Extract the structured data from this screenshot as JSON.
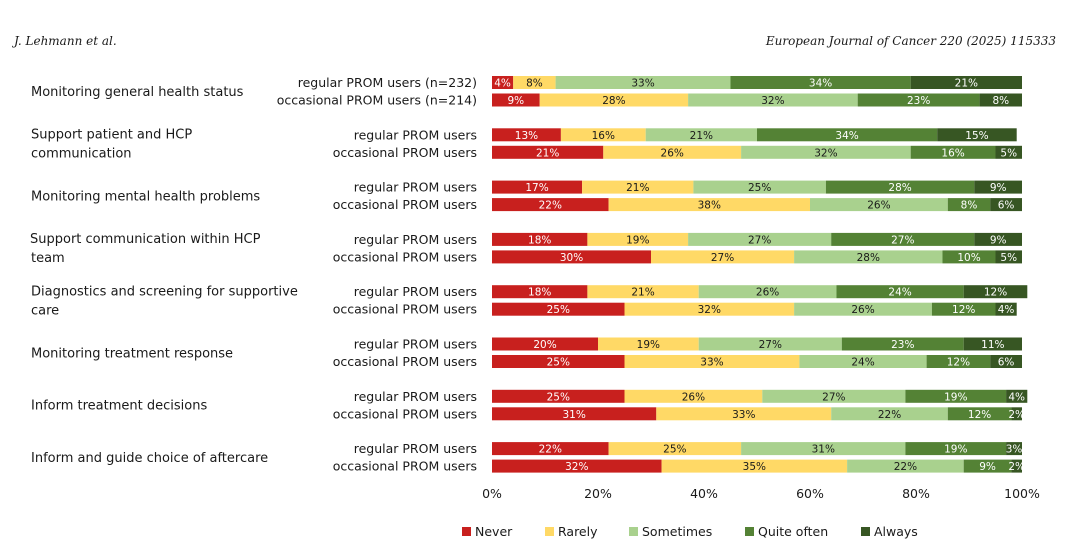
{
  "header": {
    "authors": "J. Lehmann et al.",
    "journal": "European Journal of Cancer 220 (2025) 115333"
  },
  "chart_data": {
    "type": "bar",
    "orientation": "horizontal",
    "stacked": true,
    "percent_stacked": true,
    "xlim": [
      0,
      100
    ],
    "x_ticks": [
      "0%",
      "20%",
      "40%",
      "60%",
      "80%",
      "100%"
    ],
    "grid": false,
    "legend_position": "bottom",
    "colors": {
      "Never": "#c8201e",
      "Rarely": "#ffd966",
      "Sometimes": "#a9d18e",
      "Quite often": "#548235",
      "Always": "#375623"
    },
    "series_names": [
      "Never",
      "Rarely",
      "Sometimes",
      "Quite often",
      "Always"
    ],
    "categories": [
      {
        "label_lines": [
          "Monitoring general health status"
        ],
        "groups": [
          {
            "label": "regular PROM users (n=232)",
            "values": [
              4,
              8,
              33,
              34,
              21
            ]
          },
          {
            "label": "occasional PROM users (n=214)",
            "values": [
              9,
              28,
              32,
              23,
              8
            ]
          }
        ]
      },
      {
        "label_lines": [
          "Support patient and HCP",
          "communication"
        ],
        "groups": [
          {
            "label": "regular PROM users",
            "values": [
              13,
              16,
              21,
              34,
              15
            ]
          },
          {
            "label": "occasional PROM users",
            "values": [
              21,
              26,
              32,
              16,
              5
            ]
          }
        ]
      },
      {
        "label_lines": [
          "Monitoring mental health problems"
        ],
        "groups": [
          {
            "label": "regular PROM users",
            "values": [
              17,
              21,
              25,
              28,
              9
            ]
          },
          {
            "label": "occasional PROM users",
            "values": [
              22,
              38,
              26,
              8,
              6
            ]
          }
        ]
      },
      {
        "label_lines": [
          "Support communication within HCP",
          "team"
        ],
        "groups": [
          {
            "label": "regular PROM users",
            "values": [
              18,
              19,
              27,
              27,
              9
            ]
          },
          {
            "label": "occasional PROM users",
            "values": [
              30,
              27,
              28,
              10,
              5
            ]
          }
        ]
      },
      {
        "label_lines": [
          "Diagnostics and screening for supportive",
          "care"
        ],
        "groups": [
          {
            "label": "regular PROM users",
            "values": [
              18,
              21,
              26,
              24,
              12
            ]
          },
          {
            "label": "occasional PROM users",
            "values": [
              25,
              32,
              26,
              12,
              4
            ]
          }
        ]
      },
      {
        "label_lines": [
          "Monitoring treatment response"
        ],
        "groups": [
          {
            "label": "regular PROM users",
            "values": [
              20,
              19,
              27,
              23,
              11
            ]
          },
          {
            "label": "occasional PROM users",
            "values": [
              25,
              33,
              24,
              12,
              6
            ]
          }
        ]
      },
      {
        "label_lines": [
          "Inform treatment decisions"
        ],
        "groups": [
          {
            "label": "regular PROM users",
            "values": [
              25,
              26,
              27,
              19,
              4
            ]
          },
          {
            "label": "occasional PROM users",
            "values": [
              31,
              33,
              22,
              12,
              2
            ]
          }
        ]
      },
      {
        "label_lines": [
          "Inform and guide choice of aftercare"
        ],
        "groups": [
          {
            "label": "regular PROM users",
            "values": [
              22,
              25,
              31,
              19,
              3
            ]
          },
          {
            "label": "occasional PROM users",
            "values": [
              32,
              35,
              22,
              9,
              2
            ]
          }
        ]
      }
    ]
  }
}
